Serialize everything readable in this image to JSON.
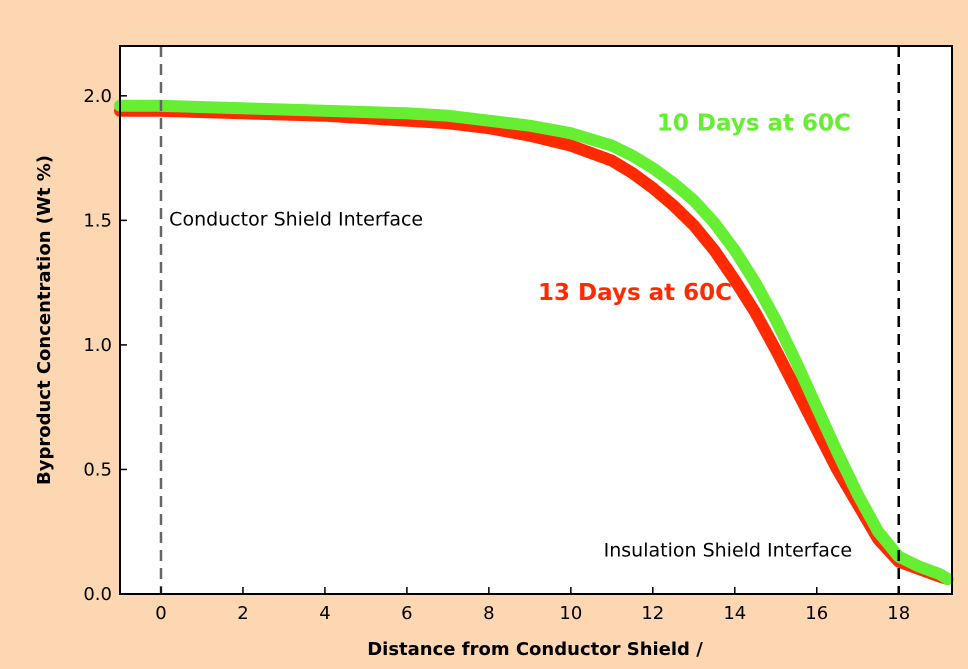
{
  "chart_data": {
    "type": "line",
    "title": "",
    "xlabel": "Distance from Conductor Shield /",
    "ylabel": "Byproduct Concentration (Wt %)",
    "xlim": [
      -1,
      19.3
    ],
    "ylim": [
      0,
      2.2
    ],
    "xticks": [
      0,
      2,
      4,
      6,
      8,
      10,
      12,
      14,
      16,
      18
    ],
    "yticks": [
      0.0,
      0.5,
      1.0,
      1.5,
      2.0
    ],
    "xtick_labels": [
      "0",
      "2",
      "4",
      "6",
      "8",
      "10",
      "12",
      "14",
      "16",
      "18"
    ],
    "ytick_labels": [
      "0.0",
      "0.5",
      "1.0",
      "1.5",
      "2.0"
    ],
    "grid": false,
    "series": [
      {
        "name": "13 Days at 60C",
        "color": "#ff2a00",
        "x": [
          -1,
          0,
          2,
          4,
          6,
          7,
          8,
          9,
          10,
          11,
          11.5,
          12,
          12.5,
          13,
          13.5,
          14,
          14.5,
          15,
          15.5,
          16,
          16.5,
          17,
          17.5,
          18,
          18.5,
          19,
          19.2
        ],
        "y": [
          1.94,
          1.94,
          1.93,
          1.92,
          1.9,
          1.89,
          1.87,
          1.84,
          1.8,
          1.74,
          1.69,
          1.63,
          1.56,
          1.48,
          1.38,
          1.26,
          1.13,
          0.98,
          0.82,
          0.66,
          0.5,
          0.36,
          0.22,
          0.13,
          0.1,
          0.07,
          0.06
        ]
      },
      {
        "name": "10 Days at 60C",
        "color": "#66ee33",
        "x": [
          -1,
          0,
          2,
          4,
          6,
          7,
          8,
          9,
          10,
          11,
          11.5,
          12,
          12.5,
          13,
          13.5,
          14,
          14.5,
          15,
          15.5,
          16,
          16.5,
          17,
          17.5,
          18,
          18.5,
          19,
          19.2
        ],
        "y": [
          1.96,
          1.96,
          1.95,
          1.94,
          1.93,
          1.92,
          1.9,
          1.88,
          1.85,
          1.8,
          1.76,
          1.71,
          1.65,
          1.58,
          1.49,
          1.38,
          1.25,
          1.1,
          0.93,
          0.75,
          0.57,
          0.4,
          0.25,
          0.15,
          0.11,
          0.08,
          0.06
        ]
      }
    ],
    "reference_lines": [
      {
        "x": 0,
        "color": "#666666"
      },
      {
        "x": 18,
        "color": "#000000"
      }
    ],
    "annotations": [
      {
        "text": "Conductor Shield Interface",
        "x": 0.2,
        "y": 1.48
      },
      {
        "text": "Insulation Shield Interface",
        "x": 10.8,
        "y": 0.15
      },
      {
        "text": "10 Days at 60C",
        "x": 12.1,
        "y": 1.86,
        "color": "#66ee33"
      },
      {
        "text": "13 Days at 60C",
        "x": 9.2,
        "y": 1.18,
        "color": "#ff2a00"
      }
    ],
    "colors": {
      "page_background": "#fcd7b1",
      "plot_background": "#ffffff"
    }
  }
}
